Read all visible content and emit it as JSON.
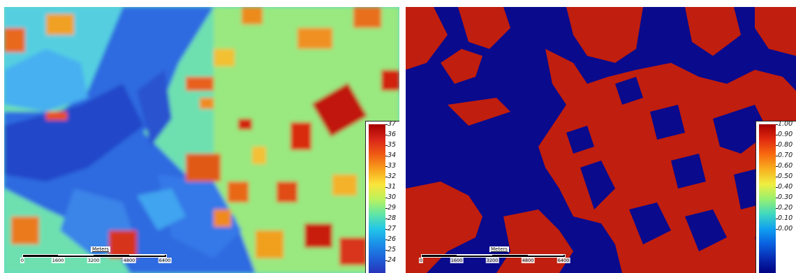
{
  "left_map": {
    "colorbar": {
      "labels": [
        "37",
        "36",
        "35",
        "34",
        "33",
        "32",
        "31",
        "30",
        "29",
        "28",
        "27",
        "26",
        "25",
        "24"
      ],
      "colors": [
        "#a50000",
        "#d8261a",
        "#f05a14",
        "#f8a01c",
        "#fbe43a",
        "#bdf25c",
        "#62e6a4",
        "#22c6e8",
        "#1b8fe8",
        "#1f5fd8",
        "#2632b8"
      ]
    },
    "scalebar": {
      "title": "Meters",
      "ticks": [
        "0",
        "1600",
        "3200",
        "4800",
        "6400"
      ]
    }
  },
  "right_map": {
    "colorbar": {
      "labels": [
        "1.00",
        "0.90",
        "0.80",
        "0.70",
        "0.60",
        "0.50",
        "0.40",
        "0.30",
        "0.20",
        "0.10",
        "0.00"
      ],
      "colors": [
        "#a50000",
        "#e02a10",
        "#f86a10",
        "#f8b020",
        "#f0ee40",
        "#98f070",
        "#40d8c0",
        "#10a0f0",
        "#0a60e0",
        "#082ab0",
        "#000080"
      ]
    },
    "scalebar": {
      "title": "Meters",
      "ticks": [
        "0",
        "1600",
        "3200",
        "4800",
        "6400"
      ]
    },
    "classes": {
      "low": "#0a0a8c",
      "high": "#c01e0e"
    }
  }
}
